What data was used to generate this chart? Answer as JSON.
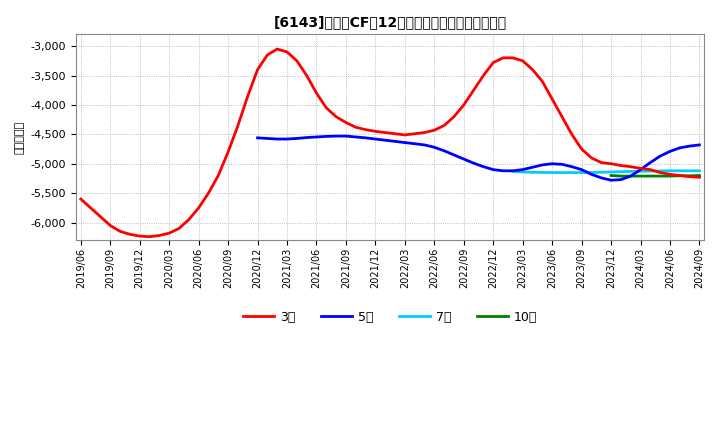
{
  "title": "[6143]　投賄CFの12か月移動合計の平均値の推移",
  "ylabel": "（百万円）",
  "background_color": "#ffffff",
  "plot_bg_color": "#ffffff",
  "grid_color": "#aaaaaa",
  "ylim": [
    -6300,
    -2800
  ],
  "yticks": [
    -6000,
    -5500,
    -5000,
    -4500,
    -4000,
    -3500,
    -3000
  ],
  "x_tick_labels": [
    "2019/06",
    "2019/09",
    "2019/12",
    "2020/03",
    "2020/06",
    "2020/09",
    "2020/12",
    "2021/03",
    "2021/06",
    "2021/09",
    "2021/12",
    "2022/03",
    "2022/06",
    "2022/09",
    "2022/12",
    "2023/03",
    "2023/06",
    "2023/09",
    "2023/12",
    "2024/03",
    "2024/06",
    "2024/09"
  ],
  "x_tick_positions": [
    0,
    3,
    6,
    9,
    12,
    15,
    18,
    21,
    24,
    27,
    30,
    33,
    36,
    39,
    42,
    45,
    48,
    51,
    54,
    57,
    60,
    63
  ],
  "series": {
    "3year": {
      "color": "#ff0000",
      "label": "3年",
      "x": [
        0,
        1,
        2,
        3,
        4,
        5,
        6,
        7,
        8,
        9,
        10,
        11,
        12,
        13,
        14,
        15,
        16,
        17,
        18,
        19,
        20,
        21,
        22,
        23,
        24,
        25,
        26,
        27,
        28,
        29,
        30,
        31,
        32,
        33,
        34,
        35,
        36,
        37,
        38,
        39,
        40,
        41,
        42,
        43,
        44,
        45,
        46,
        47,
        48,
        49,
        50,
        51,
        52,
        53,
        54,
        55,
        56,
        57,
        58,
        59,
        60,
        61,
        62,
        63
      ],
      "y": [
        -5600,
        -5750,
        -5900,
        -6050,
        -6150,
        -6200,
        -6230,
        -6240,
        -6220,
        -6180,
        -6100,
        -5950,
        -5750,
        -5500,
        -5200,
        -4800,
        -4350,
        -3850,
        -3400,
        -3150,
        -3050,
        -3100,
        -3250,
        -3500,
        -3800,
        -4050,
        -4200,
        -4300,
        -4380,
        -4420,
        -4450,
        -4470,
        -4490,
        -4510,
        -4490,
        -4470,
        -4430,
        -4350,
        -4200,
        -4000,
        -3750,
        -3500,
        -3280,
        -3200,
        -3200,
        -3250,
        -3400,
        -3600,
        -3900,
        -4200,
        -4500,
        -4750,
        -4900,
        -4980,
        -5000,
        -5030,
        -5050,
        -5080,
        -5100,
        -5150,
        -5180,
        -5200,
        -5220,
        -5230
      ]
    },
    "5year": {
      "color": "#0000ff",
      "label": "5年",
      "x": [
        18,
        19,
        20,
        21,
        22,
        23,
        24,
        25,
        26,
        27,
        28,
        29,
        30,
        31,
        32,
        33,
        34,
        35,
        36,
        37,
        38,
        39,
        40,
        41,
        42,
        43,
        44,
        45,
        46,
        47,
        48,
        49,
        50,
        51,
        52,
        53,
        54,
        55,
        56,
        57,
        58,
        59,
        60,
        61,
        62,
        63
      ],
      "y": [
        -4560,
        -4570,
        -4580,
        -4580,
        -4570,
        -4555,
        -4545,
        -4535,
        -4530,
        -4530,
        -4545,
        -4560,
        -4580,
        -4600,
        -4620,
        -4640,
        -4660,
        -4680,
        -4720,
        -4780,
        -4850,
        -4920,
        -4990,
        -5050,
        -5100,
        -5120,
        -5120,
        -5100,
        -5060,
        -5020,
        -5000,
        -5010,
        -5050,
        -5100,
        -5180,
        -5240,
        -5280,
        -5270,
        -5210,
        -5100,
        -4980,
        -4870,
        -4790,
        -4730,
        -4700,
        -4680
      ]
    },
    "7year": {
      "color": "#00ccff",
      "label": "7年",
      "x": [
        44,
        45,
        46,
        47,
        48,
        49,
        50,
        51,
        52,
        53,
        54,
        55,
        56,
        57,
        58,
        59,
        60,
        61,
        62,
        63
      ],
      "y": [
        -5130,
        -5140,
        -5145,
        -5148,
        -5150,
        -5150,
        -5150,
        -5150,
        -5148,
        -5145,
        -5140,
        -5135,
        -5130,
        -5128,
        -5125,
        -5122,
        -5120,
        -5120,
        -5120,
        -5120
      ]
    },
    "10year": {
      "color": "#008000",
      "label": "10年",
      "x": [
        54,
        55,
        56,
        57,
        58,
        59,
        60,
        61,
        62,
        63
      ],
      "y": [
        -5200,
        -5210,
        -5210,
        -5210,
        -5210,
        -5210,
        -5210,
        -5205,
        -5205,
        -5200
      ]
    }
  },
  "legend_labels": [
    "3年",
    "5年",
    "7年",
    "10年"
  ],
  "legend_colors": [
    "#ff0000",
    "#0000ff",
    "#00ccff",
    "#008000"
  ]
}
